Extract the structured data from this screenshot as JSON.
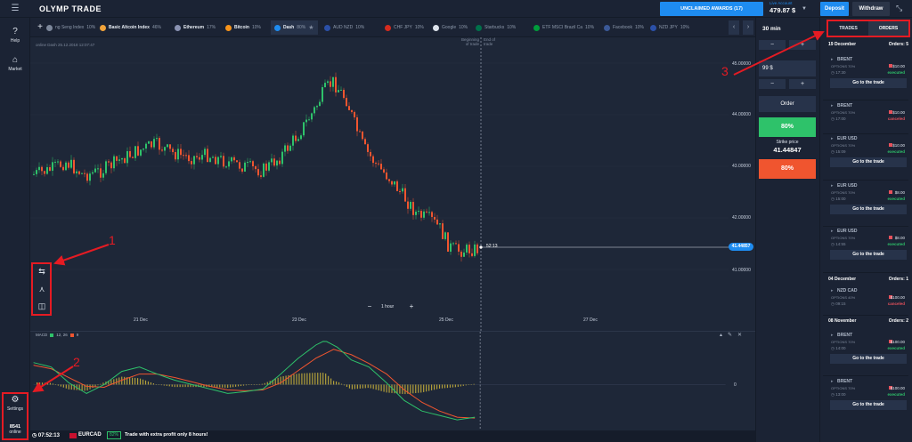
{
  "topbar": {
    "menu_icon": "hamburger-icon",
    "logo": "OLYMP TRADE",
    "awards_button": "UNCLAIMED AWARDS (17)",
    "account_label": "Live Account",
    "account_balance": "479.87 $",
    "deposit": "Deposit",
    "withdraw": "Withdraw"
  },
  "sidebar": {
    "help": "Help",
    "market": "Market",
    "settings": "Settings",
    "online_count": "8541",
    "online_label": "online"
  },
  "tabs": [
    {
      "name": "ng Seng Index",
      "pct": "10%",
      "color": "#7d889b",
      "dim": true
    },
    {
      "name": "Basic Altcoin Index",
      "pct": "46%",
      "color": "#f2a33a",
      "dim": false
    },
    {
      "name": "Ethereum",
      "pct": "17%",
      "color": "#8a92b2",
      "dim": false
    },
    {
      "name": "Bitcoin",
      "pct": "10%",
      "color": "#f7931a",
      "dim": false
    },
    {
      "name": "Dash",
      "pct": "80%",
      "color": "#1e8cf0",
      "dim": false,
      "active": true
    },
    {
      "name": "AUD NZD",
      "pct": "10%",
      "color": "#2b50a8",
      "dim": true
    },
    {
      "name": "CHF JPY",
      "pct": "10%",
      "color": "#d52b1e",
      "dim": true
    },
    {
      "name": "Google",
      "pct": "10%",
      "color": "#dde3ec",
      "dim": true
    },
    {
      "name": "Starbucks",
      "pct": "10%",
      "color": "#00704a",
      "dim": true
    },
    {
      "name": "ETF MSCI Brazil Ca",
      "pct": "10%",
      "color": "#009c3b",
      "dim": true
    },
    {
      "name": "Facebook",
      "pct": "10%",
      "color": "#3b5998",
      "dim": true
    },
    {
      "name": "NZD JPY",
      "pct": "10%",
      "color": "#2b50a8",
      "dim": true
    }
  ],
  "chart": {
    "info": "online Dash 25.12.2018 12:07:47",
    "beginning_label_1": "Beginning",
    "beginning_label_2": "of trade",
    "end_label_1": "End of",
    "end_label_2": "trade",
    "y_ticks": [
      "45.00000",
      "44.00000",
      "43.00000",
      "42.00000",
      "41.00000"
    ],
    "x_ticks": [
      "21 Dec",
      "23 Dec",
      "25 Dec",
      "27 Dec"
    ],
    "current_price": "41.44857",
    "time_to_expiry": "52:13",
    "timeframe": "1 hour"
  },
  "macd": {
    "name": "MACD",
    "params": "12, 26",
    "signal": "9",
    "zero_label": "0",
    "macd_color": "#2ec26a",
    "signal_color": "#f0552f",
    "hist_color": "#b3a03a"
  },
  "bottombar": {
    "clock": "07:52:13",
    "pair": "EURCAD",
    "promo_pct": "82%",
    "promo_text": "Trade with extra profit only 8 hours!"
  },
  "trade": {
    "duration": "30 min",
    "amount": "99 $",
    "order_label": "Order",
    "call_pct": "80%",
    "strike_label": "Strike price",
    "strike_value": "41.44847",
    "put_pct": "80%"
  },
  "orders": {
    "tab_trades": "TRADES",
    "tab_orders": "ORDERS",
    "go_label": "Go to the trade",
    "groups": [
      {
        "date": "19 December",
        "count_label": "Orders: 5"
      },
      {
        "date": "04 December",
        "count_label": "Orders: 1"
      },
      {
        "date": "08 November",
        "count_label": "Orders: 2"
      }
    ],
    "items": [
      {
        "asset": "BRENT",
        "options": "OPTIONS 70%",
        "time": "17:30",
        "amount": "$10.00",
        "status": "executed"
      },
      {
        "asset": "BRENT",
        "options": "OPTIONS 70%",
        "time": "17:00",
        "amount": "$10.00",
        "status": "canceled"
      },
      {
        "asset": "EUR USD",
        "options": "OPTIONS 70%",
        "time": "15:09",
        "amount": "$10.00",
        "status": "executed"
      },
      {
        "asset": "EUR USD",
        "options": "OPTIONS 70%",
        "time": "15:00",
        "amount": "$8.00",
        "status": "executed"
      },
      {
        "asset": "EUR USD",
        "options": "OPTIONS 70%",
        "time": "14:55",
        "amount": "$8.00",
        "status": "executed"
      },
      {
        "asset": "NZD CAD",
        "options": "OPTIONS 40%",
        "time": "09:15",
        "amount": "$100.00",
        "status": "canceled"
      },
      {
        "asset": "BRENT",
        "options": "OPTIONS 70%",
        "time": "14:00",
        "amount": "$100.00",
        "status": "executed"
      },
      {
        "asset": "BRENT",
        "options": "OPTIONS 70%",
        "time": "13:00",
        "amount": "$100.00",
        "status": "executed"
      }
    ]
  },
  "annotations": [
    "1",
    "2",
    "3"
  ]
}
